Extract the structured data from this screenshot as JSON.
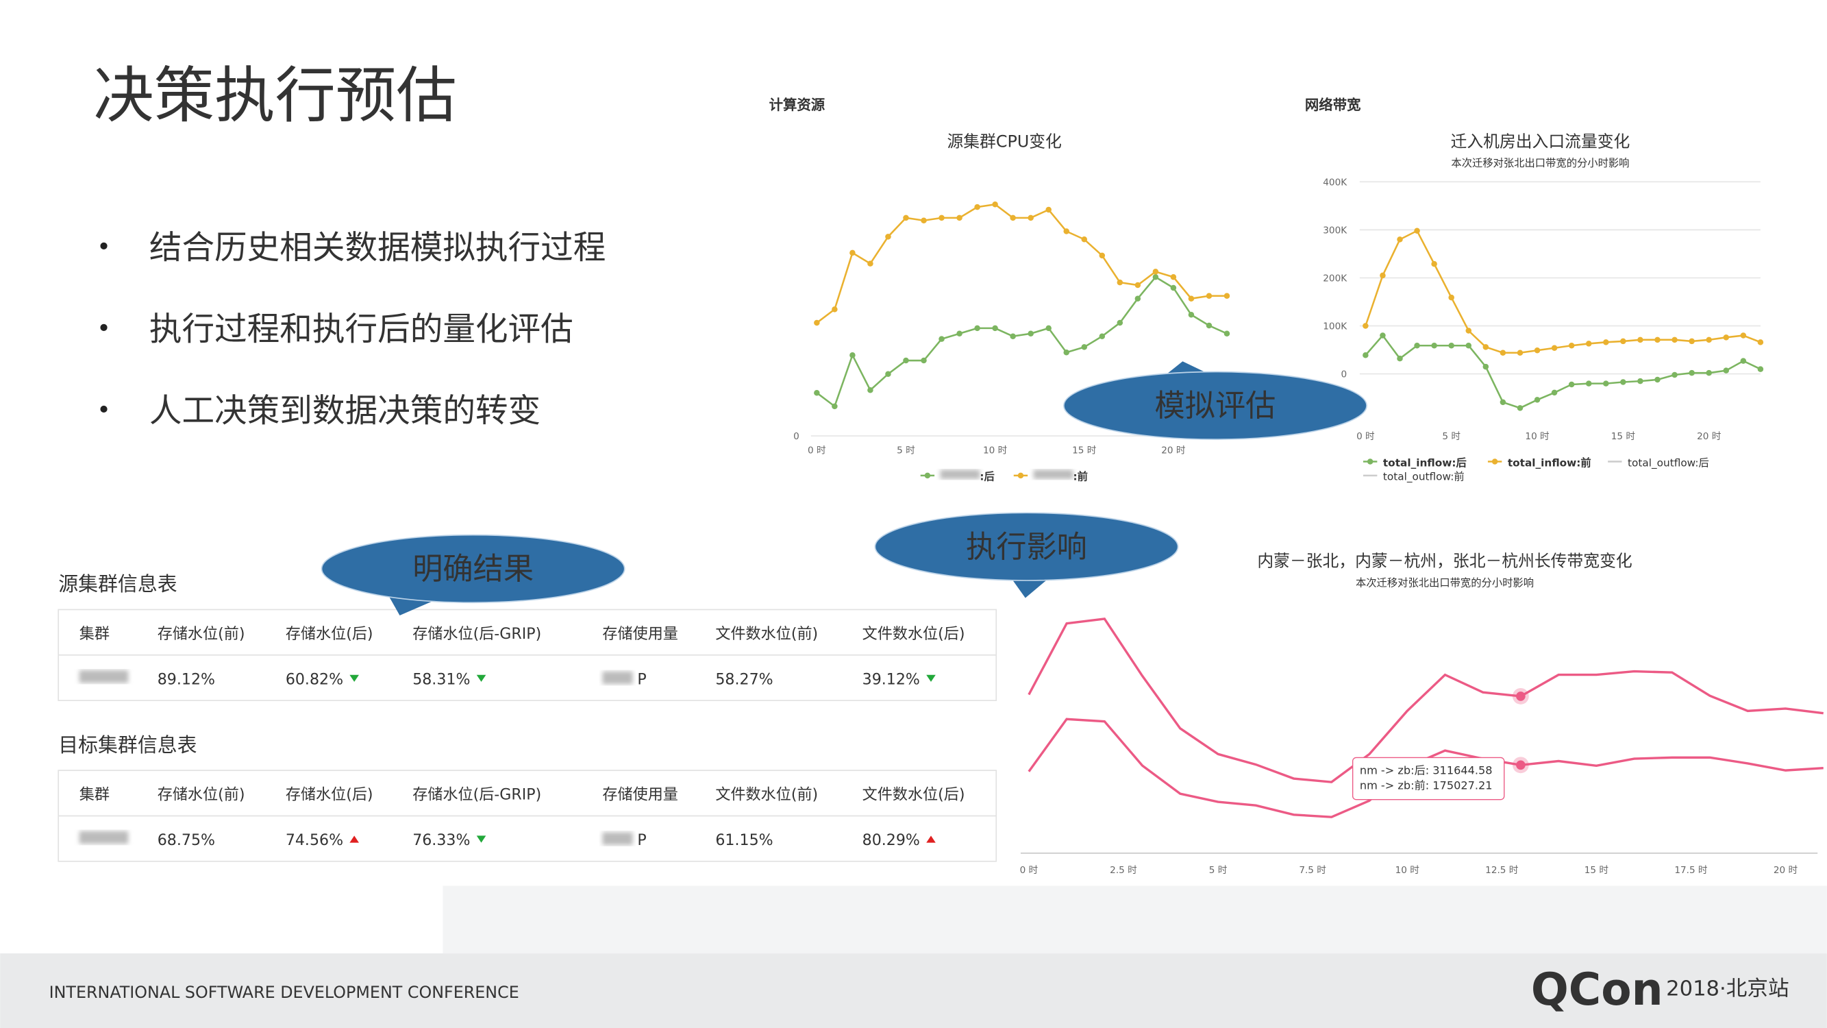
{
  "slide": {
    "title": "决策执行预估",
    "bullets": [
      "结合历史相关数据模拟执行过程",
      "执行过程和执行后的量化评估",
      "人工决策到数据决策的转变"
    ],
    "callouts": [
      "模拟评估",
      "明确结果",
      "执行影响"
    ],
    "footer": "INTERNATIONAL SOFTWARE DEVELOPMENT CONFERENCE",
    "logo": "QCon",
    "event": "2018·北京站"
  },
  "panels": {
    "compute": "计算资源",
    "network": "网络带宽"
  },
  "chart_data": [
    {
      "type": "line",
      "title": "源集群CPU变化",
      "x": [
        0,
        1,
        2,
        3,
        4,
        5,
        6,
        7,
        8,
        9,
        10,
        11,
        12,
        13,
        14,
        15,
        16,
        17,
        18,
        19,
        20,
        21,
        22,
        23
      ],
      "xlim": [
        0,
        23
      ],
      "xticks": [
        {
          "value": 0,
          "label": "0 时"
        },
        {
          "value": 5,
          "label": "5 时"
        },
        {
          "value": 10,
          "label": "10 时"
        },
        {
          "value": 15,
          "label": "15 时"
        },
        {
          "value": 20,
          "label": "20 时"
        }
      ],
      "ylim": [
        0,
        100
      ],
      "yticks": [
        0
      ],
      "grid": true,
      "series": [
        {
          "name": ":后",
          "color": "#7cb560",
          "values": [
            16,
            11,
            30,
            17,
            23,
            28,
            28,
            36,
            38,
            40,
            40,
            37,
            38,
            40,
            31,
            33,
            37,
            42,
            51,
            59,
            55,
            45,
            41,
            38
          ]
        },
        {
          "name": ":前",
          "color": "#eab12f",
          "values": [
            42,
            47,
            68,
            64,
            74,
            81,
            80,
            81,
            81,
            85,
            86,
            81,
            81,
            84,
            76,
            73,
            67,
            57,
            56,
            61,
            59,
            51,
            52,
            52
          ]
        }
      ]
    },
    {
      "type": "line",
      "title": "迁入机房出入口流量变化",
      "subtitle": "本次迁移对张北出口带宽的分小时影响",
      "x": [
        0,
        1,
        2,
        3,
        4,
        5,
        6,
        7,
        8,
        9,
        10,
        11,
        12,
        13,
        14,
        15,
        16,
        17,
        18,
        19,
        20,
        21,
        22,
        23
      ],
      "xlim": [
        0,
        23
      ],
      "xticks": [
        {
          "value": 0,
          "label": "0 时"
        },
        {
          "value": 5,
          "label": "5 时"
        },
        {
          "value": 10,
          "label": "10 时"
        },
        {
          "value": 15,
          "label": "15 时"
        },
        {
          "value": 20,
          "label": "20 时"
        }
      ],
      "ylim": [
        -100000,
        400000
      ],
      "yticks": [
        0,
        {
          "value": 100000,
          "label": "100K"
        },
        {
          "value": 200000,
          "label": "200K"
        },
        {
          "value": 300000,
          "label": "300K"
        },
        {
          "value": 400000,
          "label": "400K"
        }
      ],
      "grid": true,
      "series": [
        {
          "name": "total_inflow:后",
          "color": "#7cb560",
          "values": [
            39000,
            80000,
            32000,
            59000,
            59000,
            59000,
            59000,
            15000,
            -59000,
            -71000,
            -54000,
            -39000,
            -22000,
            -20000,
            -20000,
            -17000,
            -15000,
            -12000,
            -2000,
            2000,
            2000,
            7000,
            27000,
            10000
          ]
        },
        {
          "name": "total_inflow:前",
          "color": "#eab12f",
          "values": [
            100000,
            205000,
            280000,
            298000,
            229000,
            159000,
            90000,
            56000,
            44000,
            44000,
            49000,
            54000,
            59000,
            63000,
            66000,
            68000,
            71000,
            71000,
            71000,
            68000,
            71000,
            76000,
            80000,
            66000
          ]
        }
      ],
      "hidden_series": [
        "total_outflow:后",
        "total_outflow:前"
      ]
    },
    {
      "type": "line",
      "title": "内蒙－张北，内蒙－杭州，张北－杭州长传带宽变化",
      "subtitle": "本次迁移对张北出口带宽的分小时影响",
      "x": [
        0,
        1,
        2,
        3,
        4,
        5,
        6,
        7,
        8,
        9,
        10,
        11,
        12,
        13,
        14,
        15,
        16,
        17,
        18,
        19,
        20,
        21
      ],
      "xlim": [
        0,
        21
      ],
      "xticks": [
        {
          "value": 0,
          "label": "0 时"
        },
        {
          "value": 2.5,
          "label": "2.5 时"
        },
        {
          "value": 5,
          "label": "5 时"
        },
        {
          "value": 7.5,
          "label": "7.5 时"
        },
        {
          "value": 10,
          "label": "10 时"
        },
        {
          "value": 12.5,
          "label": "12.5 时"
        },
        {
          "value": 15,
          "label": "15 时"
        },
        {
          "value": 17.5,
          "label": "17.5 时"
        },
        {
          "value": 20,
          "label": "20 时"
        }
      ],
      "ylim": [
        0,
        500000
      ],
      "series": [
        {
          "name": "nm -> zb:后",
          "color": "#ec5a85",
          "values": [
            314900,
            456200,
            465400,
            352000,
            247800,
            196800,
            176000,
            148200,
            141200,
            196800,
            282500,
            354300,
            319500,
            311644.58,
            354300,
            354300,
            361200,
            358900,
            312600,
            282500,
            287100,
            277900
          ]
        },
        {
          "name": "nm -> zb:前",
          "color": "#ec5a85",
          "values": [
            162100,
            266300,
            261600,
            174000,
            118100,
            101900,
            94900,
            76400,
            71800,
            104200,
            171300,
            203800,
            187600,
            175027.21,
            182900,
            173700,
            187600,
            189900,
            189900,
            178300,
            164400,
            169000
          ]
        }
      ],
      "tooltip_index": 13,
      "tooltip": [
        "nm -> zb:后: 311644.58",
        "nm -> zb:前: 175027.21"
      ]
    }
  ],
  "tables": [
    {
      "title": "源集群信息表",
      "headers": [
        "集群",
        "存储水位(前)",
        "存储水位(后)",
        "存储水位(后-GRIP)",
        "存储使用量",
        "文件数水位(前)",
        "文件数水位(后)"
      ],
      "cells": [
        {
          "text": "89.12%"
        },
        {
          "text": "60.82%",
          "trend": "down"
        },
        {
          "text": "58.31%",
          "trend": "down"
        },
        {
          "text": "P"
        },
        {
          "text": "58.27%"
        },
        {
          "text": "39.12%",
          "trend": "down"
        }
      ]
    },
    {
      "title": "目标集群信息表",
      "headers": [
        "集群",
        "存储水位(前)",
        "存储水位(后)",
        "存储水位(后-GRIP)",
        "存储使用量",
        "文件数水位(前)",
        "文件数水位(后)"
      ],
      "cells": [
        {
          "text": "68.75%"
        },
        {
          "text": "74.56%",
          "trend": "up"
        },
        {
          "text": "76.33%",
          "trend": "down"
        },
        {
          "text": "P"
        },
        {
          "text": "61.15%"
        },
        {
          "text": "80.29%",
          "trend": "up"
        }
      ]
    }
  ]
}
